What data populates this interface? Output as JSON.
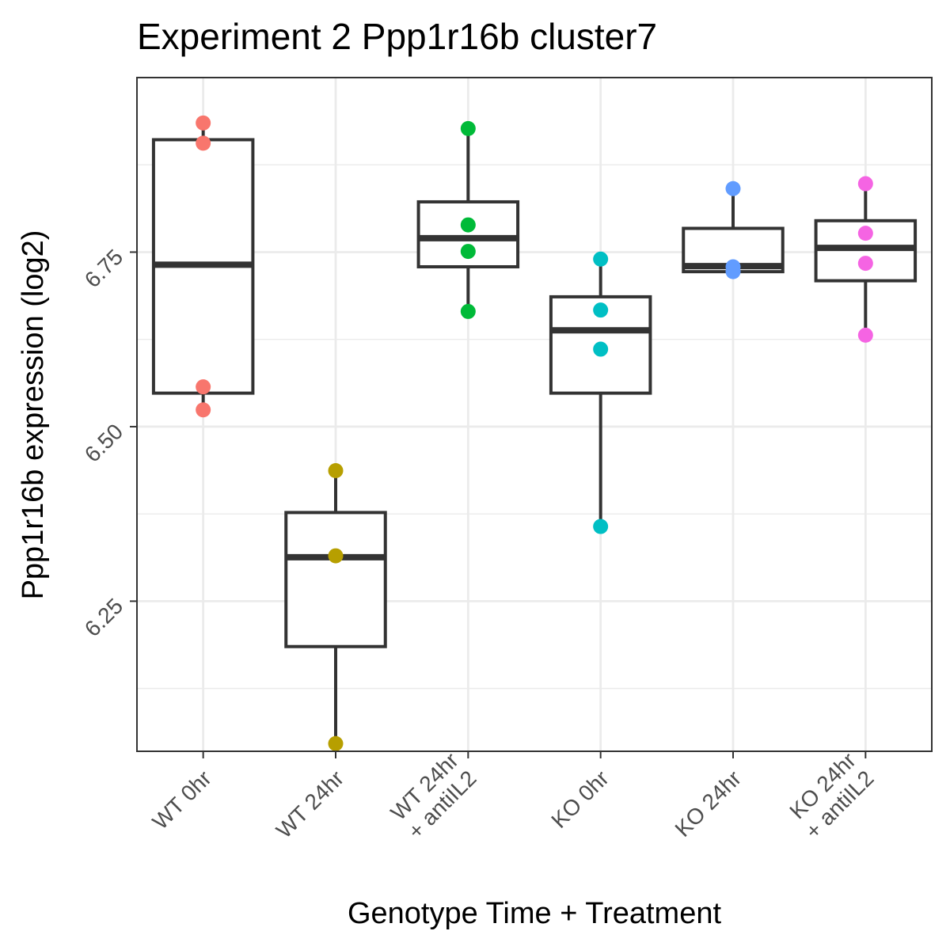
{
  "chart_data": {
    "type": "box",
    "title": "Experiment 2 Ppp1r16b cluster7",
    "xlabel": "Genotype Time + Treatment",
    "ylabel": "Ppp1r16b expression (log2)",
    "ylim": [
      6.035,
      7.0
    ],
    "yticks": [
      6.25,
      6.5,
      6.75
    ],
    "ytick_labels": [
      "6.25",
      "6.50",
      "6.75"
    ],
    "grid": true,
    "categories": [
      {
        "label": [
          "WT 0hr"
        ],
        "color": "#F8766D",
        "box": {
          "q1": 6.548,
          "median": 6.732,
          "q3": 6.911,
          "lower": 6.524,
          "upper": 6.935
        },
        "points": [
          6.935,
          6.906,
          6.557,
          6.524
        ]
      },
      {
        "label": [
          "WT 24hr"
        ],
        "color": "#B79F00",
        "box": {
          "q1": 6.185,
          "median": 6.313,
          "q3": 6.377,
          "lower": 6.046,
          "upper": 6.437
        },
        "points": [
          6.437,
          6.315,
          6.046
        ]
      },
      {
        "label": [
          "WT 24hr",
          "+ antiIL2"
        ],
        "color": "#00BA38",
        "box": {
          "q1": 6.729,
          "median": 6.77,
          "q3": 6.822,
          "lower": 6.665,
          "upper": 6.927
        },
        "points": [
          6.927,
          6.789,
          6.751,
          6.665
        ]
      },
      {
        "label": [
          "KO 0hr"
        ],
        "color": "#00BFC4",
        "box": {
          "q1": 6.548,
          "median": 6.638,
          "q3": 6.686,
          "lower": 6.357,
          "upper": 6.74
        },
        "points": [
          6.74,
          6.667,
          6.611,
          6.357
        ]
      },
      {
        "label": [
          "KO 24hr"
        ],
        "color": "#619CFF",
        "box": {
          "q1": 6.722,
          "median": 6.73,
          "q3": 6.784,
          "lower": 6.722,
          "upper": 6.841
        },
        "points": [
          6.841,
          6.729,
          6.722
        ]
      },
      {
        "label": [
          "KO 24hr",
          "+ antiIL2"
        ],
        "color": "#F564E3",
        "box": {
          "q1": 6.709,
          "median": 6.756,
          "q3": 6.795,
          "lower": 6.631,
          "upper": 6.848
        },
        "points": [
          6.848,
          6.777,
          6.734,
          6.631
        ]
      }
    ]
  }
}
